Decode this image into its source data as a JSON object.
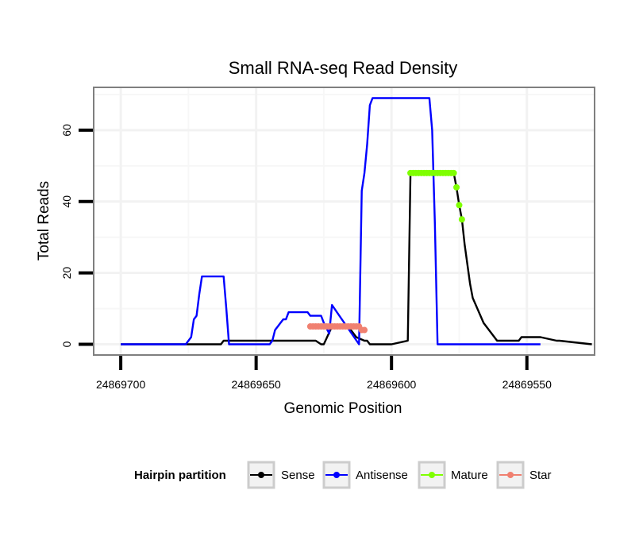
{
  "chart_data": {
    "type": "line",
    "title": "Small RNA-seq Read Density",
    "xlabel": "Genomic Position",
    "ylabel": "Total Reads",
    "x_reversed": true,
    "xlim": [
      24869710,
      24869525
    ],
    "ylim": [
      -3,
      72
    ],
    "x_ticks": [
      24869700,
      24869650,
      24869600,
      24869550
    ],
    "x_tick_labels": [
      "24869700",
      "24869650",
      "24869600",
      "24869550"
    ],
    "y_ticks": [
      0,
      20,
      40,
      60
    ],
    "y_tick_labels": [
      "0",
      "20",
      "40",
      "60"
    ],
    "grid": true,
    "legend": {
      "title": "Hairpin partition",
      "position": "bottom",
      "entries": [
        {
          "name": "Sense",
          "color": "#000000"
        },
        {
          "name": "Antisense",
          "color": "#0000ff"
        },
        {
          "name": "Mature",
          "color": "#7fff00"
        },
        {
          "name": "Star",
          "color": "#f08070"
        }
      ]
    },
    "series": [
      {
        "name": "Sense",
        "color": "#000000",
        "style": "line",
        "x": [
          24869700,
          24869663,
          24869662,
          24869641,
          24869637,
          24869636,
          24869633,
          24869628,
          24869626,
          24869625,
          24869622,
          24869618,
          24869616,
          24869615,
          24869613,
          24869610,
          24869609,
          24869608,
          24869605,
          24869604,
          24869602,
          24869600,
          24869594,
          24869593,
          24869592,
          24869584,
          24869577,
          24869576,
          24869575,
          24869574,
          24869573,
          24869571,
          24869570,
          24869566,
          24869561,
          24869553,
          24869552,
          24869545,
          24869539,
          24869538,
          24869526
        ],
        "y": [
          0,
          0,
          1,
          1,
          1,
          1,
          1,
          1,
          0,
          0,
          5,
          5,
          5,
          4,
          2,
          1,
          1,
          0,
          0,
          0,
          0,
          0,
          1,
          48,
          48,
          48,
          48,
          44,
          39,
          35,
          28,
          17,
          13,
          6,
          1,
          1,
          2,
          2,
          1,
          1,
          0
        ]
      },
      {
        "name": "Antisense",
        "color": "#0000ff",
        "style": "line",
        "x": [
          24869700,
          24869676,
          24869675,
          24869674,
          24869673,
          24869672,
          24869671,
          24869670,
          24869663,
          24869662,
          24869661,
          24869660,
          24869645,
          24869644,
          24869643,
          24869642,
          24869641,
          24869640,
          24869639,
          24869638,
          24869637,
          24869631,
          24869630,
          24869626,
          24869625,
          24869623,
          24869622,
          24869612,
          24869611,
          24869610,
          24869609,
          24869608,
          24869607,
          24869606,
          24869605,
          24869604,
          24869603,
          24869602,
          24869601,
          24869600,
          24869599,
          24869586,
          24869585,
          24869584,
          24869583,
          24869545
        ],
        "y": [
          0,
          0,
          1,
          2,
          7,
          8,
          14,
          19,
          19,
          19,
          10,
          0,
          0,
          1,
          4,
          5,
          6,
          7,
          7,
          9,
          9,
          9,
          8,
          8,
          6,
          3,
          11,
          0,
          43,
          48,
          56,
          67,
          69,
          69,
          69,
          69,
          69,
          69,
          69,
          69,
          69,
          69,
          60,
          34,
          0,
          0
        ]
      },
      {
        "name": "Mature",
        "color": "#7fff00",
        "style": "points",
        "x": [
          24869593,
          24869592,
          24869591,
          24869590,
          24869589,
          24869588,
          24869587,
          24869586,
          24869585,
          24869584,
          24869583,
          24869582,
          24869581,
          24869580,
          24869579,
          24869578,
          24869577,
          24869576,
          24869575,
          24869574
        ],
        "y": [
          48,
          48,
          48,
          48,
          48,
          48,
          48,
          48,
          48,
          48,
          48,
          48,
          48,
          48,
          48,
          48,
          48,
          44,
          39,
          35
        ]
      },
      {
        "name": "Star",
        "color": "#f08070",
        "style": "points",
        "x": [
          24869630,
          24869629,
          24869628,
          24869627,
          24869626,
          24869625,
          24869624,
          24869623,
          24869622,
          24869621,
          24869620,
          24869619,
          24869618,
          24869617,
          24869616,
          24869615,
          24869614,
          24869613,
          24869612,
          24869611,
          24869610
        ],
        "y": [
          5,
          5,
          5,
          5,
          5,
          5,
          5,
          5,
          5,
          5,
          5,
          5,
          5,
          5,
          5,
          5,
          5,
          5,
          5,
          4,
          4
        ]
      }
    ]
  }
}
